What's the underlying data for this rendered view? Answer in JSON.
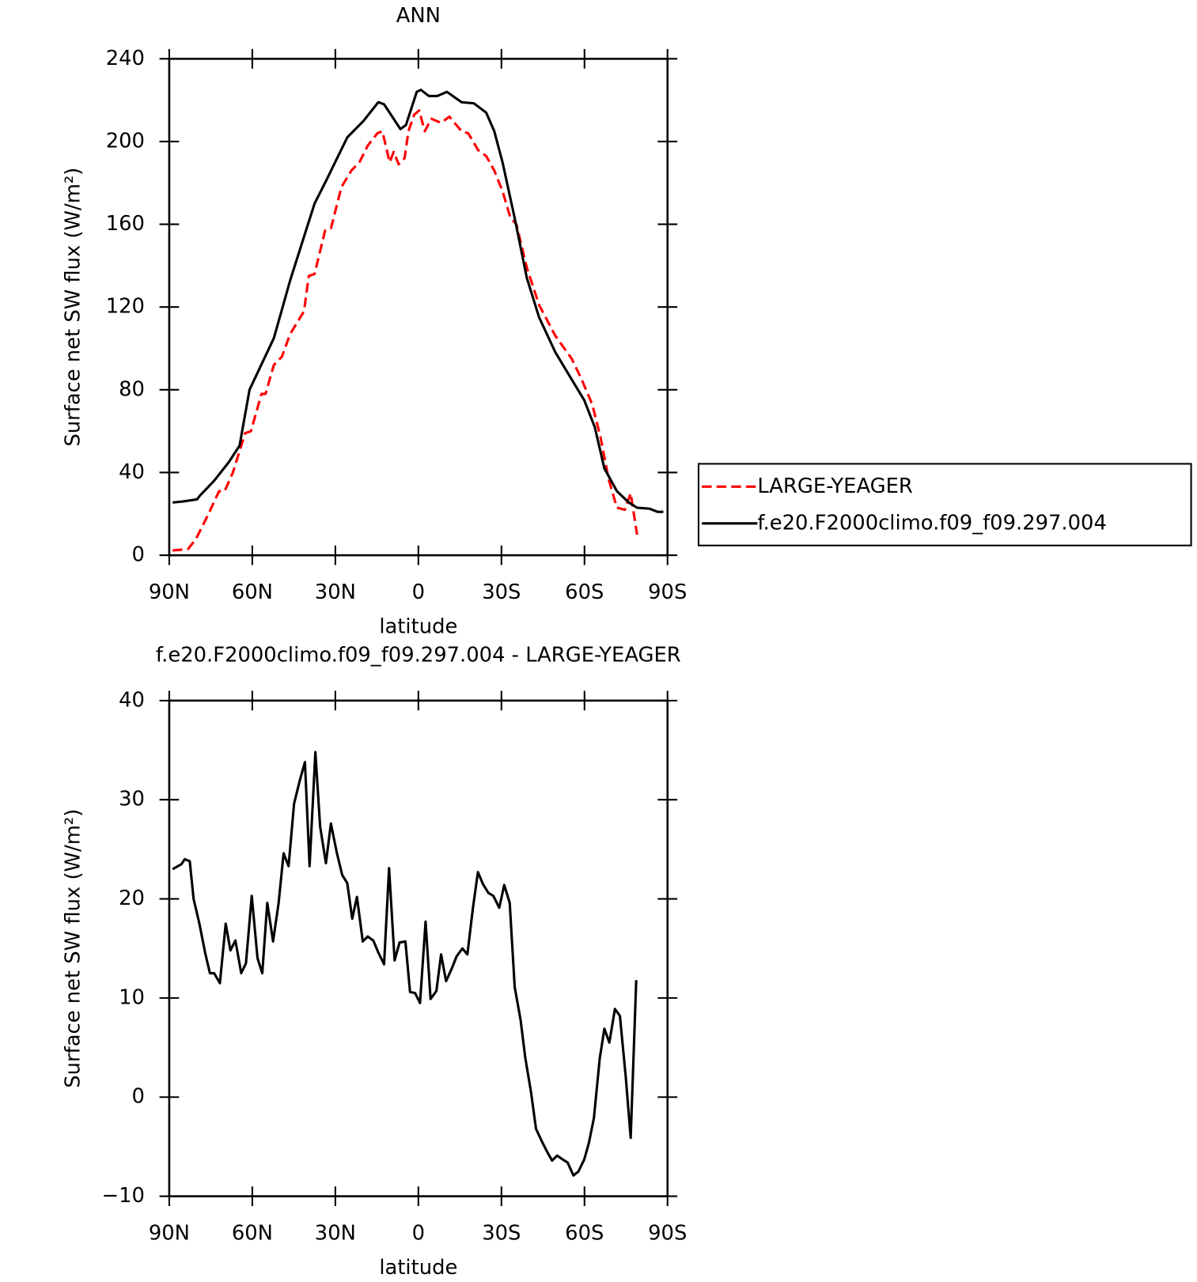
{
  "chart_data": [
    {
      "type": "line",
      "title": "ANN",
      "x_label": "latitude",
      "y_label": "Surface net SW flux (W/m²)",
      "xlim": [
        90,
        -90
      ],
      "xticks": [
        {
          "value": 90,
          "label": "90N"
        },
        {
          "value": 60,
          "label": "60N"
        },
        {
          "value": 30,
          "label": "30N"
        },
        0,
        {
          "value": -30,
          "label": "30S"
        },
        {
          "value": -60,
          "label": "60S"
        },
        {
          "value": -90,
          "label": "90S"
        }
      ],
      "ylim": [
        0,
        240
      ],
      "yticks": [
        0,
        40,
        80,
        120,
        160,
        200,
        240
      ],
      "legend": "right",
      "series": [
        {
          "name": "LARGE-YEAGER",
          "color": "#ff0000",
          "dashed": true,
          "x": [
            88.8,
            83.2,
            80.3,
            75.8,
            72,
            70,
            67,
            62.6,
            60.5,
            56.7,
            55.2,
            52.2,
            49.3,
            46.3,
            41.3,
            39.6,
            37.5,
            33.7,
            31.6,
            27.8,
            24.2,
            21.3,
            18.3,
            14.8,
            13,
            10.4,
            8.9,
            7.1,
            5,
            3.6,
            1.5,
            -0.3,
            -2.3,
            -4.7,
            -8.2,
            -11.2,
            -15.6,
            -18,
            -21.5,
            -24.5,
            -27.4,
            -30.4,
            -33.3,
            -35.4,
            -39.2,
            -43.6,
            -49.5,
            -55.4,
            -59,
            -62.8,
            -65.8,
            -68.7,
            -71.7,
            -74.6,
            -76.7,
            -79
          ],
          "values": [
            2.3,
            3,
            8,
            20,
            31,
            31,
            40,
            59,
            60,
            78,
            78,
            92,
            96,
            107,
            118,
            135,
            136,
            157,
            158,
            178,
            186,
            190,
            198,
            204,
            205,
            190,
            195,
            189,
            192,
            205,
            213,
            215,
            205,
            211,
            209,
            212,
            205,
            204,
            196,
            193,
            186,
            176,
            163,
            160,
            139,
            121,
            106,
            95,
            85,
            73,
            57,
            37,
            23,
            22,
            30,
            10
          ]
        },
        {
          "name": "f.e20.F2000climo.f09_f09.297.004",
          "color": "#000000",
          "dashed": false,
          "x": [
            88.8,
            85,
            80,
            78.8,
            73.8,
            68.5,
            64.6,
            61,
            52.2,
            46.3,
            37.5,
            33,
            25.7,
            19.8,
            14.5,
            12.4,
            6.5,
            4.5,
            0.6,
            -0.9,
            -3.8,
            -6.8,
            -10.3,
            -15.6,
            -20,
            -24.5,
            -27.4,
            -30.4,
            -34.8,
            -39.2,
            -43.6,
            -49.5,
            -55.4,
            -59.9,
            -63.7,
            -67.2,
            -71.7,
            -76,
            -79,
            -83.5,
            -86.4,
            -88.5
          ],
          "values": [
            25.5,
            26,
            27,
            29,
            36,
            45,
            53,
            80,
            105,
            133,
            170,
            182,
            202,
            210,
            219,
            218,
            206,
            208,
            224,
            225,
            222,
            222,
            224,
            219,
            218.5,
            214,
            205,
            190,
            163,
            134,
            115,
            98,
            85,
            75,
            62,
            42,
            31,
            25.5,
            23,
            22.5,
            21,
            21
          ]
        }
      ]
    },
    {
      "type": "line",
      "title": "f.e20.F2000climo.f09_f09.297.004 - LARGE-YEAGER",
      "x_label": "latitude",
      "y_label": "Surface net SW flux (W/m²)",
      "xlim": [
        90,
        -90
      ],
      "xticks": [
        {
          "value": 90,
          "label": "90N"
        },
        {
          "value": 60,
          "label": "60N"
        },
        {
          "value": 30,
          "label": "30N"
        },
        0,
        {
          "value": -30,
          "label": "30S"
        },
        {
          "value": -60,
          "label": "60S"
        },
        {
          "value": -90,
          "label": "90S"
        }
      ],
      "ylim": [
        -10,
        40
      ],
      "yticks": [
        {
          "value": -10,
          "label": "−10"
        },
        0,
        10,
        20,
        30,
        40
      ],
      "series": [
        {
          "color": "#000000",
          "dashed": false,
          "x": [
            88.8,
            85.6,
            84.4,
            82.6,
            81.2,
            79.1,
            77,
            75.3,
            73.8,
            71.7,
            69.6,
            67.9,
            66.1,
            64,
            62.3,
            60.2,
            58.1,
            56.4,
            54.6,
            52.5,
            50.5,
            48.7,
            46.9,
            44.9,
            42.8,
            41,
            39.3,
            37.2,
            35.5,
            33.4,
            31.6,
            29.5,
            27.5,
            25.7,
            23.9,
            22.2,
            20.1,
            18.3,
            16.3,
            14.5,
            12.4,
            10.6,
            8.6,
            6.8,
            4.7,
            3,
            1.2,
            -0.6,
            -2.6,
            -4.4,
            -6.5,
            -8.2,
            -10,
            -12.1,
            -13.8,
            -15.9,
            -17.7,
            -19.7,
            -21.5,
            -23.3,
            -25.3,
            -27.1,
            -29.2,
            -31,
            -33,
            -34.8,
            -36.9,
            -38.6,
            -40.7,
            -42.5,
            -44.5,
            -46.3,
            -48.3,
            -50.1,
            -52.2,
            -53.9,
            -56,
            -57.8,
            -59.9,
            -61.6,
            -63.4,
            -65.5,
            -67.2,
            -69,
            -71,
            -72.8,
            -74.9,
            -76.7,
            -78.7
          ],
          "values": [
            23,
            23.5,
            24,
            23.8,
            20,
            17.5,
            14.5,
            12.5,
            12.5,
            11.5,
            17.5,
            14.8,
            15.8,
            12.5,
            13.5,
            20.3,
            14,
            12.5,
            19.6,
            15.7,
            19.6,
            24.6,
            23.3,
            29.6,
            32,
            33.8,
            23.3,
            34.8,
            27.3,
            23.6,
            27.6,
            24.7,
            22.4,
            21.6,
            18,
            20.2,
            15.7,
            16.2,
            15.8,
            14.6,
            13.4,
            23.1,
            13.8,
            15.6,
            15.7,
            10.6,
            10.5,
            9.5,
            17.7,
            9.9,
            10.7,
            14.4,
            11.7,
            13,
            14.2,
            15,
            14.4,
            19.1,
            22.7,
            21.5,
            20.6,
            20.3,
            19.1,
            21.4,
            19.6,
            11.1,
            7.8,
            4,
            0.5,
            -3.2,
            -4.4,
            -5.4,
            -6.4,
            -5.9,
            -6.3,
            -6.6,
            -7.9,
            -7.5,
            -6.3,
            -4.6,
            -2.1,
            3.9,
            6.9,
            5.5,
            8.9,
            8.2,
            2.1,
            -4.1,
            11.8
          ]
        }
      ]
    }
  ]
}
